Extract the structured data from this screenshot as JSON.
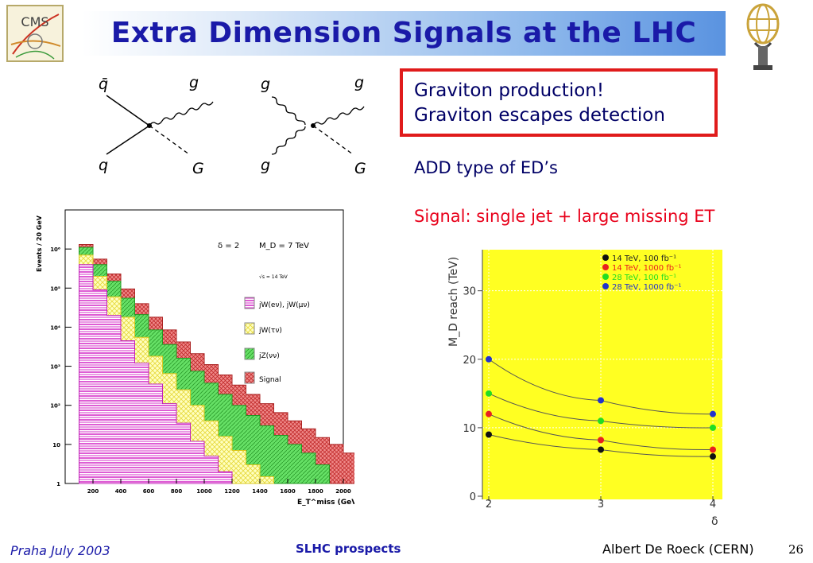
{
  "slide": {
    "title": "Extra Dimension Signals at the LHC",
    "logos": {
      "left": "CMS",
      "right": "atlas-logo"
    },
    "box_lines": [
      "Graviton production!",
      "Graviton  escapes detection"
    ],
    "add_line": "ADD type of ED’s",
    "signal_line": "Signal: single jet + large missing ET",
    "footer": {
      "left": "Praha July 2003",
      "center": "SLHC prospects",
      "right": "Albert De Roeck (CERN)",
      "page": "26"
    }
  },
  "diagrams": [
    {
      "labels": [
        "q̄",
        "g",
        "q",
        "G"
      ]
    },
    {
      "labels": [
        "g",
        "g",
        "g",
        "G"
      ]
    }
  ],
  "colors": {
    "title": "#1a1aa8",
    "box_border": "#e01b1b",
    "red_text": "#e8001a",
    "plot_bg": "#ffff22"
  },
  "chart_data": [
    {
      "type": "area",
      "ylabel": "Events / 20 GeV",
      "xlabel": "E_T^miss (GeV)",
      "x_ticks": [
        "200",
        "400",
        "600",
        "800",
        "1000",
        "1200",
        "1400",
        "1600",
        "1800",
        "2000"
      ],
      "y_ticks": [
        "1",
        "10",
        "10²",
        "10³",
        "10⁴",
        "10⁵",
        "10⁶"
      ],
      "y_scale": "log",
      "xlim": [
        0,
        2000
      ],
      "ylim": [
        1,
        10000000
      ],
      "annotations": [
        "δ = 2",
        "M_D = 7 TeV",
        "√s = 14 TeV"
      ],
      "legend": [
        "jW(eν), jW(μν)",
        "jW(τν)",
        "jZ(νν)",
        "Signal"
      ],
      "series": [
        {
          "name": "jW(eν), jW(μν)",
          "x": [
            100,
            200,
            300,
            400,
            500,
            600,
            700,
            800,
            900,
            1000,
            1100
          ],
          "values": [
            400000,
            90000,
            20000,
            4500,
            1200,
            350,
            110,
            35,
            12,
            5,
            2
          ]
        },
        {
          "name": "jW(τν)",
          "x": [
            100,
            200,
            300,
            400,
            500,
            600,
            700,
            800,
            900,
            1000,
            1100,
            1200,
            1300,
            1400
          ],
          "values": [
            700000,
            200000,
            60000,
            18000,
            5500,
            1800,
            650,
            250,
            100,
            40,
            16,
            7,
            3,
            1.5
          ]
        },
        {
          "name": "jZ(νν)",
          "x": [
            100,
            200,
            300,
            400,
            500,
            600,
            700,
            800,
            900,
            1000,
            1100,
            1200,
            1300,
            1400,
            1500,
            1600,
            1700,
            1800
          ],
          "values": [
            1100000,
            400000,
            150000,
            55000,
            21000,
            8500,
            3600,
            1600,
            750,
            370,
            190,
            100,
            55,
            30,
            17,
            10,
            6,
            3
          ]
        },
        {
          "name": "Signal",
          "x": [
            100,
            200,
            300,
            400,
            500,
            600,
            700,
            800,
            900,
            1000,
            1100,
            1200,
            1300,
            1400,
            1500,
            1600,
            1700,
            1800,
            1900,
            2000
          ],
          "values": [
            1300000,
            550000,
            230000,
            95000,
            40000,
            18000,
            8500,
            4200,
            2100,
            1100,
            600,
            330,
            190,
            110,
            65,
            40,
            25,
            15,
            10,
            6
          ]
        }
      ]
    },
    {
      "type": "scatter",
      "xlabel": "δ",
      "ylabel": "M_D reach (TeV)",
      "x_ticks": [
        "2",
        "3",
        "4"
      ],
      "y_ticks": [
        "0",
        "10",
        "20",
        "30"
      ],
      "xlim": [
        2,
        4
      ],
      "ylim": [
        0,
        36
      ],
      "grid": true,
      "legend": [
        "14 TeV, 100 fb⁻¹",
        "14 TeV, 1000 fb⁻¹",
        "28 TeV, 100 fb⁻¹",
        "28 TeV, 1000 fb⁻¹"
      ],
      "legend_placement": "top-center",
      "series": [
        {
          "name": "14 TeV, 100 fb⁻¹",
          "color": "#111111",
          "x": [
            2,
            3,
            4
          ],
          "values": [
            9,
            6.8,
            5.8
          ]
        },
        {
          "name": "14 TeV, 1000 fb⁻¹",
          "color": "#e82020",
          "x": [
            2,
            3,
            4
          ],
          "values": [
            12,
            8.2,
            6.8
          ]
        },
        {
          "name": "28 TeV, 100 fb⁻¹",
          "color": "#22dd22",
          "x": [
            2,
            3,
            4
          ],
          "values": [
            15,
            11,
            10
          ]
        },
        {
          "name": "28 TeV, 1000 fb⁻¹",
          "color": "#2233cc",
          "x": [
            2,
            3,
            4
          ],
          "values": [
            20,
            14,
            12
          ]
        }
      ]
    }
  ]
}
